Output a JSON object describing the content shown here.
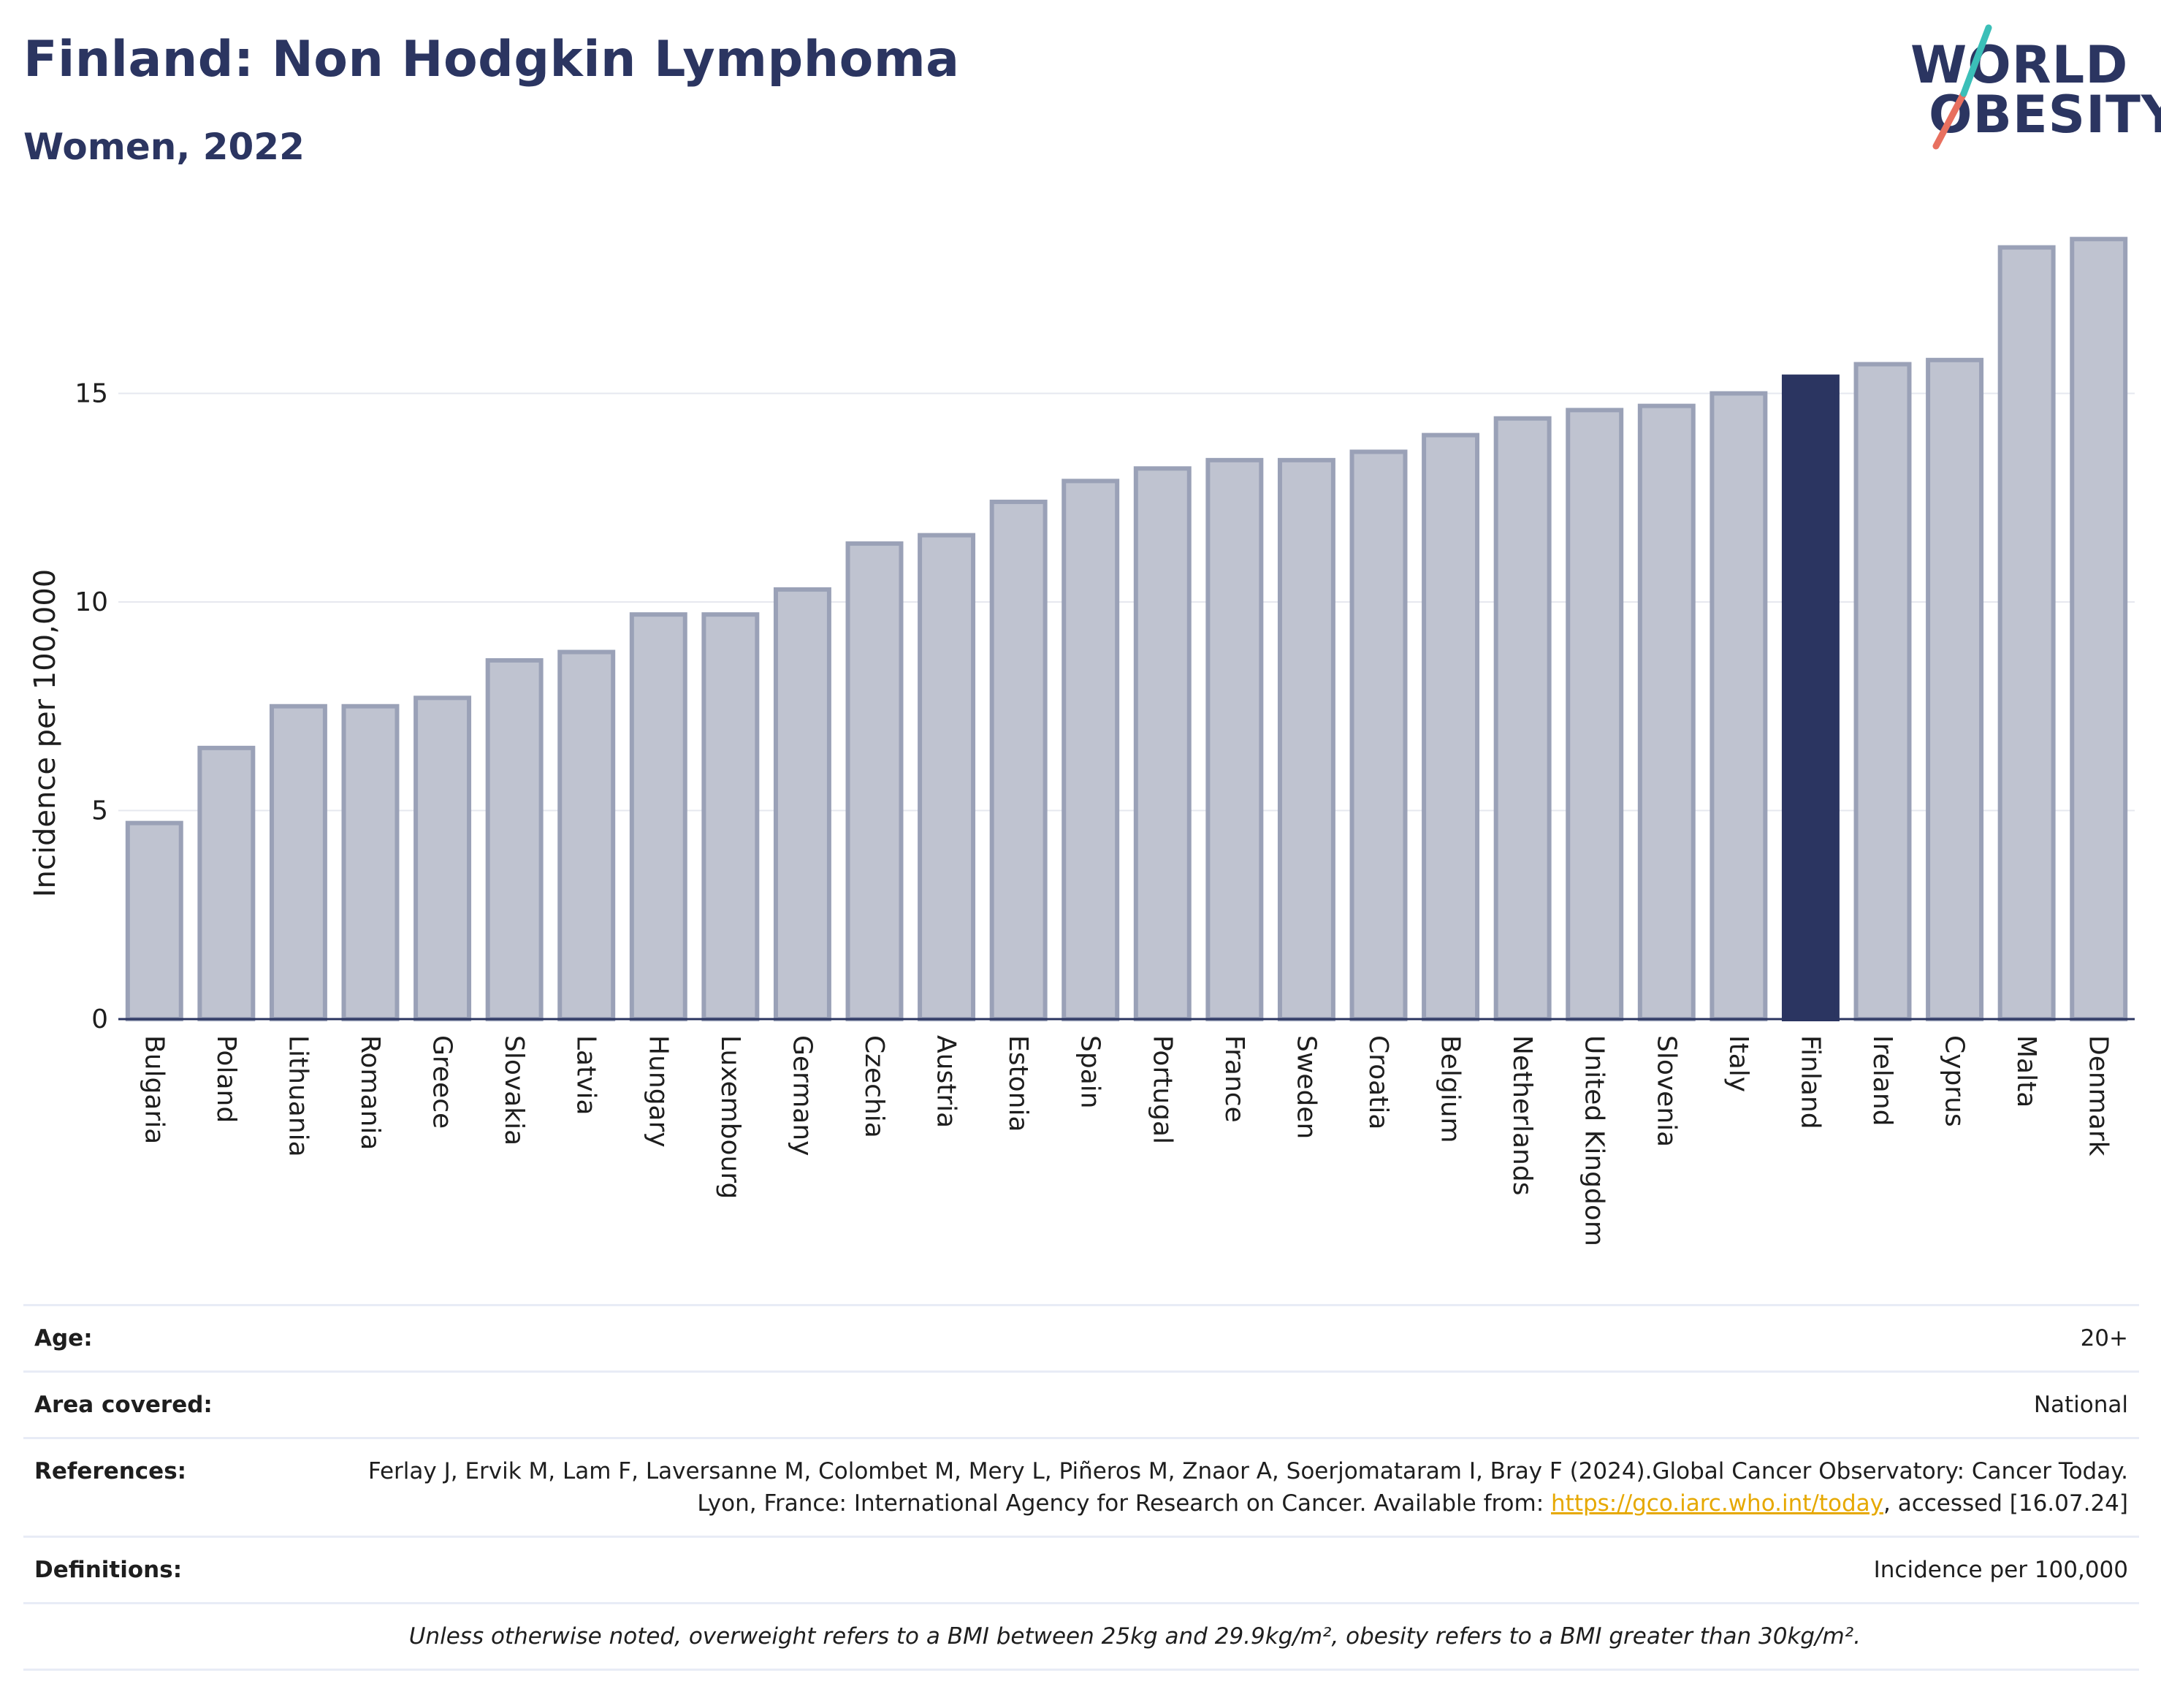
{
  "header": {
    "title": "Finland: Non Hodgkin Lymphoma",
    "subtitle": "Women, 2022",
    "logo_line1": "WORLD",
    "logo_line2": "OBESITY"
  },
  "chart_data": {
    "type": "bar",
    "ylabel": "Incidence per 100,000",
    "ylim": [
      0,
      19
    ],
    "yticks": [
      0,
      5,
      10,
      15
    ],
    "grid": true,
    "categories": [
      "Bulgaria",
      "Poland",
      "Lithuania",
      "Romania",
      "Greece",
      "Slovakia",
      "Latvia",
      "Hungary",
      "Luxembourg",
      "Germany",
      "Czechia",
      "Austria",
      "Estonia",
      "Spain",
      "Portugal",
      "France",
      "Sweden",
      "Croatia",
      "Belgium",
      "Netherlands",
      "United Kingdom",
      "Slovenia",
      "Italy",
      "Finland",
      "Ireland",
      "Cyprus",
      "Malta",
      "Denmark"
    ],
    "values": [
      4.7,
      6.5,
      7.5,
      7.5,
      7.7,
      8.6,
      8.8,
      9.7,
      9.7,
      10.3,
      11.4,
      11.6,
      12.4,
      12.9,
      13.2,
      13.4,
      13.4,
      13.6,
      14.0,
      14.4,
      14.6,
      14.7,
      15.0,
      15.4,
      15.7,
      15.8,
      18.5,
      18.7
    ],
    "highlight": "Finland",
    "colors": {
      "bar": "#bfc3d0",
      "bar_border": "#9aa1b7",
      "highlight": "#2b3561",
      "axis": "#2b3561",
      "grid": "#e6e8ef"
    }
  },
  "info": {
    "age_label": "Age:",
    "age_value": "20+",
    "area_label": "Area covered:",
    "area_value": "National",
    "ref_label": "References:",
    "ref_text_1": "Ferlay J, Ervik M, Lam F, Laversanne M, Colombet M, Mery L, Piñeros M, Znaor A, Soerjomataram I, Bray F (2024).Global Cancer Observatory: Cancer Today. Lyon, France: International Agency for Research on Cancer. Available from: ",
    "ref_link": "https://gco.iarc.who.int/today",
    "ref_text_2": ", accessed [16.07.24]",
    "def_label": "Definitions:",
    "def_value": "Incidence per 100,000",
    "note": "Unless otherwise noted, overweight refers to a BMI between 25kg and 29.9kg/m², obesity refers to a BMI greater than 30kg/m²."
  }
}
